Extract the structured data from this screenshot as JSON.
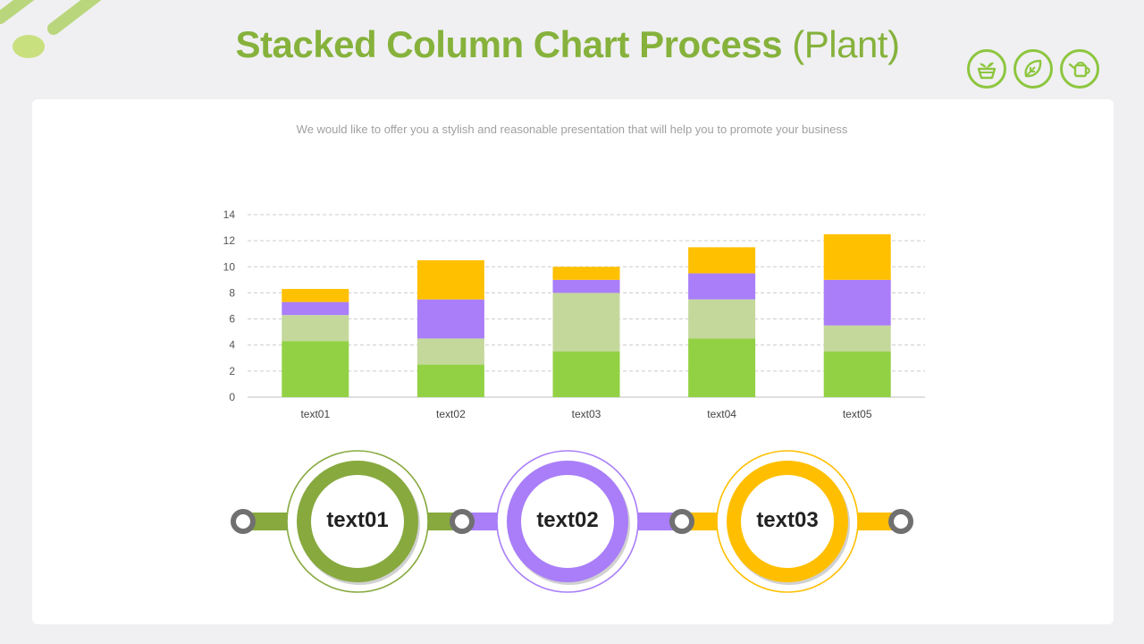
{
  "header": {
    "title_main": "Stacked Column Chart Process",
    "title_paren": "(Plant)",
    "subtitle": "We would like to offer you a stylish and reasonable presentation that will help you to promote your business",
    "icons": [
      "plant-pot-icon",
      "leaf-icon",
      "watering-can-icon"
    ]
  },
  "colors": {
    "accent_green": "#86b23c",
    "series_1": "#92d144",
    "series_2": "#c4d89c",
    "series_3": "#a97ef8",
    "series_4": "#ffc000",
    "process_green": "#87a93e",
    "process_purple": "#a97ef8",
    "process_yellow": "#ffbf00",
    "connector_grey": "#707070"
  },
  "chart_data": {
    "type": "bar",
    "stacked": true,
    "categories": [
      "text01",
      "text02",
      "text03",
      "text04",
      "text05"
    ],
    "series": [
      {
        "values": [
          4.3,
          2.5,
          3.5,
          4.5,
          3.5
        ]
      },
      {
        "values": [
          2.0,
          2.0,
          4.5,
          3.0,
          2.0
        ]
      },
      {
        "values": [
          1.0,
          3.0,
          1.0,
          2.0,
          3.5
        ]
      },
      {
        "values": [
          1.0,
          3.0,
          1.0,
          2.0,
          3.5
        ]
      }
    ],
    "yticks": [
      "0",
      "2",
      "4",
      "6",
      "8",
      "10",
      "12",
      "14"
    ],
    "ylim": [
      0,
      14
    ],
    "grid": true,
    "legend": "none"
  },
  "process": {
    "nodes": [
      {
        "label": "text01",
        "color": "#87a93e"
      },
      {
        "label": "text02",
        "color": "#a97ef8"
      },
      {
        "label": "text03",
        "color": "#ffbf00"
      }
    ]
  }
}
